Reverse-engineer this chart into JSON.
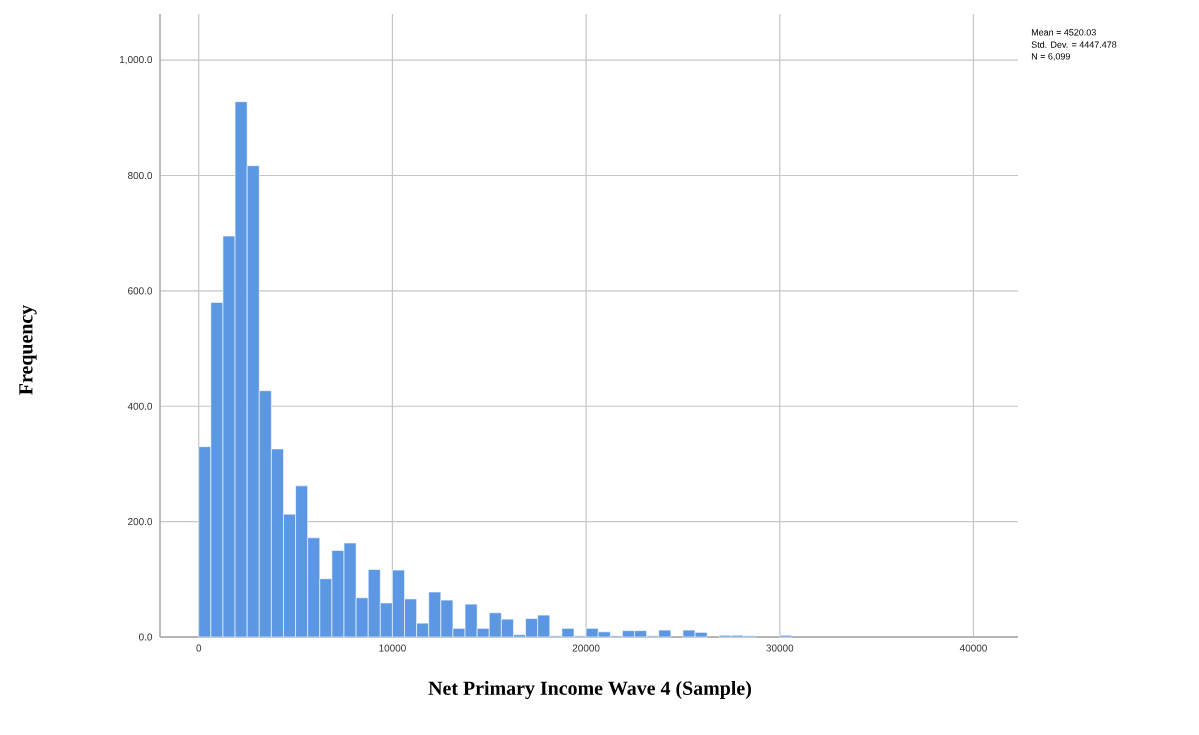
{
  "chart_data": {
    "type": "histogram",
    "xlabel": "Net Primary Income Wave 4 (Sample)",
    "ylabel": "Frequency",
    "annotations": [
      "Mean = 4520.03",
      "Std. Dev. = 4447.478",
      "N = 6,099"
    ],
    "bins": [
      0,
      625,
      1250,
      1875,
      2500,
      3125,
      3750,
      4375,
      5000,
      5625,
      6250,
      6875,
      7500,
      8125,
      8750,
      9375,
      10000,
      10625,
      11250,
      11875,
      12500,
      13125,
      13750,
      14375,
      15000,
      15625,
      16250,
      16875,
      17500,
      18125,
      18750,
      19375,
      20000,
      20625,
      21250,
      21875,
      22500,
      23125,
      23750,
      24375,
      25000,
      25625,
      26250,
      26875,
      27500,
      28125,
      28750,
      29375,
      30000,
      30625
    ],
    "values": [
      330,
      580,
      695,
      928,
      817,
      427,
      326,
      213,
      262,
      172,
      101,
      150,
      163,
      68,
      117,
      59,
      116,
      66,
      24,
      78,
      64,
      15,
      57,
      15,
      42,
      31,
      4,
      32,
      38,
      2,
      15,
      2,
      15,
      9,
      2,
      11,
      11,
      2,
      12,
      null,
      12,
      8,
      null,
      3,
      3,
      2,
      null,
      null,
      3
    ],
    "color": "#5b97e3",
    "xlim": [
      -2000,
      42300
    ],
    "ylim": [
      0,
      1080
    ],
    "xticks": [
      0,
      10000,
      20000,
      30000,
      40000
    ],
    "yticks": [
      {
        "value": 0,
        "label": "0.0"
      },
      {
        "value": 200,
        "label": "200.0"
      },
      {
        "value": 400,
        "label": "400.0"
      },
      {
        "value": 600,
        "label": "600.0"
      },
      {
        "value": 800,
        "label": "800.0"
      },
      {
        "value": 1000,
        "label": "1,000.0"
      }
    ],
    "grid": true
  }
}
